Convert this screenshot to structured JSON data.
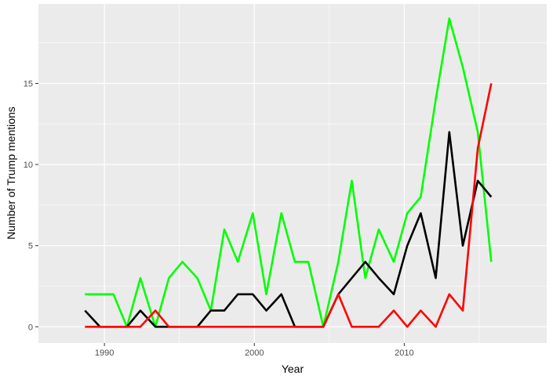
{
  "chart_data": {
    "type": "line",
    "title": "",
    "xlabel": "Year",
    "ylabel": "Number of Trump mentions",
    "xlim": [
      1985.6,
      2019.5
    ],
    "ylim": [
      -1.0,
      19.9
    ],
    "x_ticks": [
      1990,
      2000,
      2010
    ],
    "y_ticks": [
      0,
      5,
      10,
      15
    ],
    "grid": true,
    "legend": "none",
    "x": [
      1988.7,
      1989.7,
      1990.6,
      1991.5,
      1992.4,
      1993.4,
      1994.3,
      1995.2,
      1996.2,
      1997.1,
      1998.0,
      1998.9,
      1999.9,
      2000.8,
      2001.8,
      2002.7,
      2003.6,
      2004.6,
      2005.6,
      2006.5,
      2007.4,
      2008.3,
      2009.3,
      2010.2,
      2011.1,
      2012.1,
      2013.0,
      2013.9,
      2014.9,
      2015.8
    ],
    "series": [
      {
        "color": "#00ff00",
        "values": [
          2,
          2,
          2,
          0,
          3,
          0,
          3,
          4,
          3,
          1,
          6,
          4,
          7,
          2,
          7,
          4,
          4,
          0,
          4,
          9,
          3,
          6,
          4,
          7,
          8,
          14,
          19,
          16,
          12,
          4
        ]
      },
      {
        "color": "#000000",
        "values": [
          1,
          0,
          0,
          0,
          1,
          0,
          0,
          0,
          0,
          1,
          1,
          2,
          2,
          1,
          2,
          0,
          0,
          0,
          2,
          3,
          4,
          3,
          2,
          5,
          7,
          3,
          12,
          5,
          9,
          8
        ]
      },
      {
        "color": "#ff0000",
        "values": [
          0,
          0,
          0,
          0,
          0,
          1,
          0,
          0,
          0,
          0,
          0,
          0,
          0,
          0,
          0,
          0,
          0,
          0,
          2,
          0,
          0,
          0,
          1,
          0,
          1,
          0,
          2,
          1,
          11,
          15
        ]
      }
    ]
  }
}
